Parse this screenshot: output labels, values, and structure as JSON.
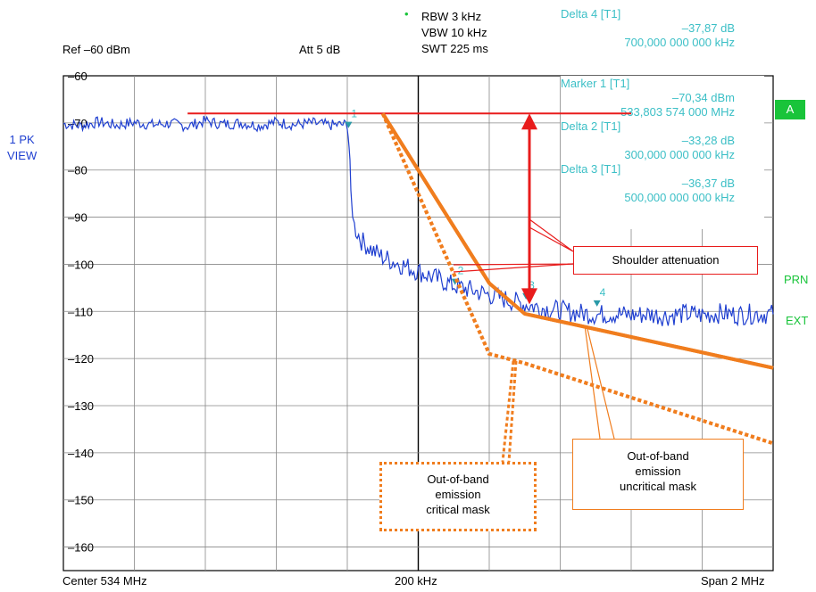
{
  "header": {
    "ref_level": "Ref –60 dBm",
    "attenuation": "Att 5 dB",
    "rbw": "RBW 3 kHz",
    "vbw": "VBW 10 kHz",
    "swt": "SWT 225 ms",
    "bullet": "•"
  },
  "markers": {
    "delta4_title": "Delta 4 [T1]",
    "delta4_value": "–37,87 dB",
    "delta4_freq": "700,000 000 000 kHz",
    "marker1_title": "Marker 1 [T1]",
    "marker1_value": "–70,34 dBm",
    "marker1_freq": "533,803 574 000 MHz",
    "delta2_title": "Delta 2 [T1]",
    "delta2_value": "–33,28 dB",
    "delta2_freq": "300,000 000 000 kHz",
    "delta3_title": "Delta 3 [T1]",
    "delta3_value": "–36,37 dB",
    "delta3_freq": "500,000 000 000 kHz"
  },
  "side": {
    "trace_mode_1": "1 PK",
    "trace_mode_2": "VIEW",
    "a_badge": "A",
    "prn": "PRN",
    "ext": "EXT"
  },
  "footer": {
    "center": "Center 534 MHz",
    "div": "200 kHz",
    "span": "Span 2 MHz"
  },
  "annotations": {
    "shoulder": "Shoulder attenuation",
    "critical_mask": [
      "Out-of-band",
      "emission",
      "critical mask"
    ],
    "uncritical_mask": [
      "Out-of-band",
      "emission",
      "uncritical mask"
    ]
  },
  "colors": {
    "trace": "#1f3fd0",
    "mask": "#f07d1e",
    "shoulder": "#e81c1c",
    "marker_text": "#3bbfc6",
    "badge": "#19c43a"
  },
  "chart_data": {
    "type": "line",
    "xlabel": "",
    "ylabel": "",
    "x_unit": "MHz",
    "xlim": [
      533,
      535
    ],
    "ylim": [
      -165,
      -60
    ],
    "y_ticks": [
      -60,
      -70,
      -80,
      -90,
      -100,
      -110,
      -120,
      -130,
      -140,
      -150,
      -160
    ],
    "grid": true,
    "series": [
      {
        "kind": "trace",
        "points": [
          [
            533.0,
            -70.2
          ],
          [
            533.05,
            -70.6
          ],
          [
            533.1,
            -69.8
          ],
          [
            533.15,
            -70.5
          ],
          [
            533.2,
            -69.9
          ],
          [
            533.25,
            -70.4
          ],
          [
            533.3,
            -70.1
          ],
          [
            533.35,
            -70.7
          ],
          [
            533.4,
            -69.6
          ],
          [
            533.45,
            -70.3
          ],
          [
            533.5,
            -70.0
          ],
          [
            533.55,
            -70.6
          ],
          [
            533.6,
            -69.8
          ],
          [
            533.65,
            -70.4
          ],
          [
            533.7,
            -70.0
          ],
          [
            533.75,
            -70.5
          ],
          [
            533.8,
            -70.3
          ],
          [
            533.805,
            -75
          ],
          [
            533.81,
            -85
          ],
          [
            533.82,
            -92
          ],
          [
            533.84,
            -95
          ],
          [
            533.87,
            -97
          ],
          [
            533.9,
            -98.5
          ],
          [
            533.95,
            -100
          ],
          [
            534.0,
            -101.5
          ],
          [
            534.05,
            -103
          ],
          [
            534.1,
            -104.5
          ],
          [
            534.15,
            -105.5
          ],
          [
            534.2,
            -106.5
          ],
          [
            534.25,
            -107.5
          ],
          [
            534.3,
            -108.5
          ],
          [
            534.35,
            -109.3
          ],
          [
            534.4,
            -109.8
          ],
          [
            534.45,
            -110.3
          ],
          [
            534.5,
            -110.7
          ],
          [
            534.55,
            -110.5
          ],
          [
            534.6,
            -110.8
          ],
          [
            534.65,
            -110.6
          ],
          [
            534.7,
            -111.0
          ],
          [
            534.75,
            -110.5
          ],
          [
            534.8,
            -110.8
          ],
          [
            534.85,
            -110.4
          ],
          [
            534.9,
            -110.7
          ],
          [
            534.95,
            -110.5
          ],
          [
            535.0,
            -110.6
          ]
        ]
      },
      {
        "kind": "uncritical-mask",
        "style": "solid",
        "points": [
          [
            533.9,
            -68
          ],
          [
            534.2,
            -104
          ],
          [
            534.3,
            -110.5
          ],
          [
            535.0,
            -122
          ]
        ]
      },
      {
        "kind": "critical-mask",
        "style": "dotted",
        "points": [
          [
            533.9,
            -68
          ],
          [
            534.2,
            -119
          ],
          [
            534.3,
            -121
          ],
          [
            535.0,
            -138
          ]
        ]
      },
      {
        "kind": "shoulder-reference",
        "points": [
          [
            533.35,
            -68
          ],
          [
            534.6,
            -68
          ]
        ]
      }
    ],
    "marker_points": [
      {
        "label": "1",
        "x": 533.803574,
        "y": -70.34
      },
      {
        "label": "2",
        "x": 534.103574,
        "y": -103.62
      },
      {
        "label": "3",
        "x": 534.303574,
        "y": -106.71
      },
      {
        "label": "4",
        "x": 534.503574,
        "y": -108.21
      }
    ]
  }
}
